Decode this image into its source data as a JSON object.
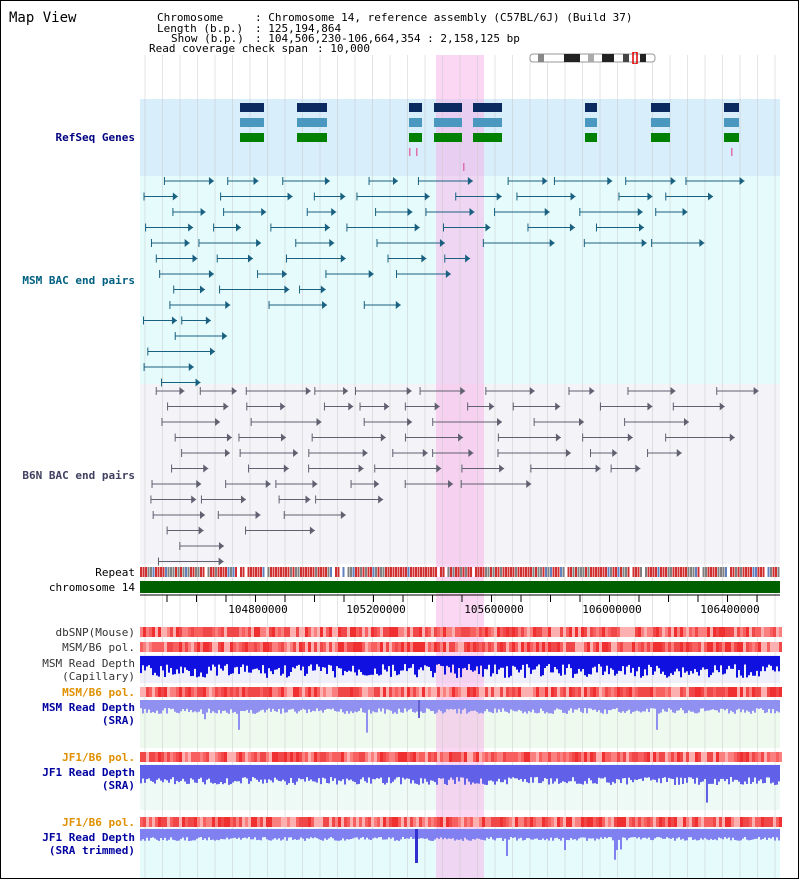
{
  "page": {
    "title": "Map View"
  },
  "info": {
    "chromosome_label": "Chromosome",
    "chromosome_value": ": Chromosome 14, reference assembly (C57BL/6J) (Build 37)",
    "length_label": "Length (b.p.)",
    "length_value": ": 125,194,864",
    "show_label": "Show (b.p.)",
    "show_value": ": 104,506,230-106,664,354 : 2,158,125 bp",
    "coverage_label": "Read coverage check span",
    "coverage_value": ": 10,000"
  },
  "tracks": {
    "refseq": "RefSeq Genes",
    "msm_bac": "MSM BAC end pairs",
    "b6n_bac": "B6N BAC end pairs",
    "repeat": "Repeat",
    "chromosome": "chromosome 14",
    "dbsnp": "dbSNP(Mouse)",
    "msm_b6_pol": "MSM/B6 pol.",
    "msm_depth_cap_1": "MSM Read Depth",
    "msm_depth_cap_2": "(Capillary)",
    "msm_b6_pol2": "MSM/B6 pol.",
    "msm_depth_sra_1": "MSM Read Depth",
    "msm_depth_sra_2": "(SRA)",
    "jf1_b6_pol": "JF1/B6 pol.",
    "jf1_depth_sra_1": "JF1 Read Depth",
    "jf1_depth_sra_2": "(SRA)",
    "jf1_b6_pol2": "JF1/B6 pol.",
    "jf1_depth_trim_1": "JF1 Read Depth",
    "jf1_depth_trim_2": "(SRA trimmed)"
  },
  "axis": {
    "ticks": [
      "104800000",
      "105200000",
      "105600000",
      "106000000",
      "106400000"
    ]
  },
  "colors": {
    "refseq_bg": "#d8eefa",
    "msm_bg": "#e6fcfc",
    "b6n_bg": "#f4f4f8",
    "msm_label": "#006080",
    "refseq_label": "#000080",
    "orange": "#e09000",
    "blue_label": "#0000a0",
    "chromosome_green": "#006000"
  }
}
